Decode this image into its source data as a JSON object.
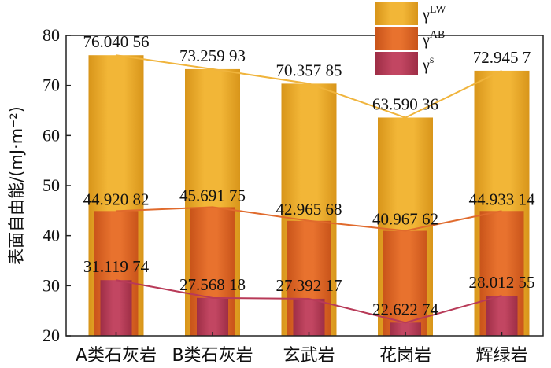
{
  "chart_data": {
    "type": "bar",
    "categories": [
      "A类石灰岩",
      "B类石灰岩",
      "玄武岩",
      "花岗岩",
      "辉绿岩"
    ],
    "ylabel": "表面自由能/(mJ·m⁻²)",
    "ylim": [
      20,
      80
    ],
    "yticks": [
      20,
      30,
      40,
      50,
      60,
      70,
      80
    ],
    "legend_position": "top-right",
    "grid": false,
    "series": [
      {
        "key": "lw",
        "name": "γLW",
        "legend_base": "γ",
        "legend_sup": "LW",
        "color": "#E6A51E",
        "line_color": "#F0B43C",
        "values": [
          76.04056,
          73.25993,
          70.35785,
          63.59036,
          72.9457
        ],
        "labels": [
          "76.040 56",
          "73.259 93",
          "70.357 85",
          "63.590 36",
          "72.945 7"
        ]
      },
      {
        "key": "ab",
        "name": "γAB",
        "legend_base": "γ",
        "legend_sup": "AB",
        "color": "#DD6220",
        "line_color": "#E06A2C",
        "values": [
          44.92082,
          45.69175,
          42.96568,
          40.96762,
          44.93314
        ],
        "labels": [
          "44.920 82",
          "45.691 75",
          "42.965 68",
          "40.967 62",
          "44.933 14"
        ]
      },
      {
        "key": "s",
        "name": "γs",
        "legend_base": "γ",
        "legend_sup": "s",
        "color": "#B23A52",
        "line_color": "#B83A58",
        "values": [
          31.11974,
          27.56818,
          27.39217,
          22.62274,
          28.01255
        ],
        "labels": [
          "31.119 74",
          "27.568 18",
          "27.392 17",
          "22.622 74",
          "28.012 55"
        ]
      }
    ]
  }
}
